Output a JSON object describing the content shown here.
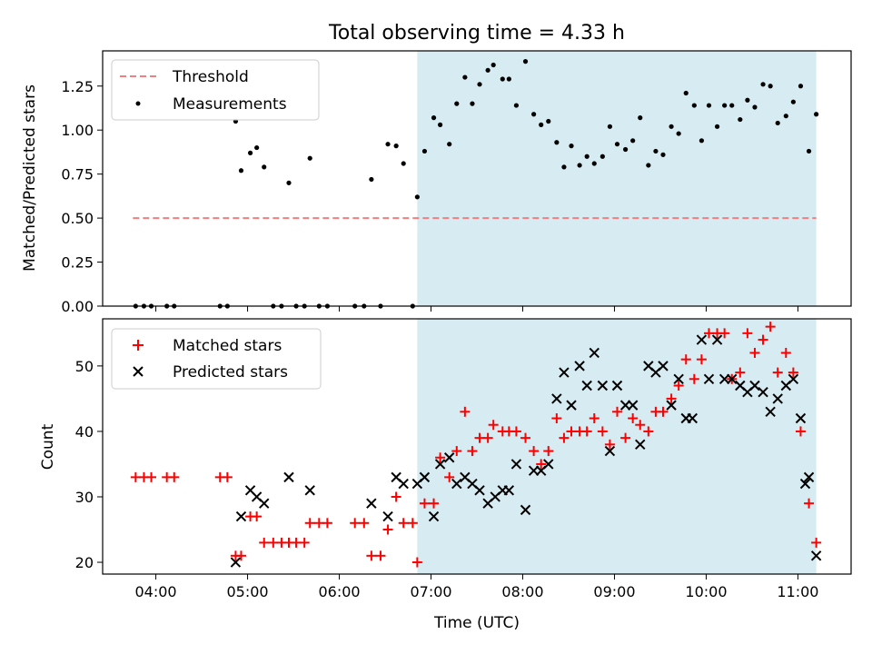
{
  "title": "Total observing time = 4.33 h",
  "colors": {
    "threshold": "#f08080",
    "measurement": "#000000",
    "matched": "#ff0000",
    "predicted": "#000000",
    "shade": "#add8e6"
  },
  "chart_data": [
    {
      "type": "scatter",
      "ylabel": "Matched/Predicted stars",
      "ylim": [
        0,
        1.45
      ],
      "xlim_hours": [
        3.42,
        11.58
      ],
      "shaded_region_hours": [
        6.85,
        11.2
      ],
      "yticks": [
        "0.00",
        "0.25",
        "0.50",
        "0.75",
        "1.00",
        "1.25"
      ],
      "legend": {
        "position": "top-left",
        "threshold_label": "Threshold",
        "measurement_label": "Measurements"
      },
      "threshold": {
        "y": 0.5,
        "x_hours": [
          3.75,
          11.2
        ]
      },
      "series": [
        {
          "name": "Measurements",
          "x_hours": [
            3.78,
            3.87,
            3.95,
            4.12,
            4.2,
            4.7,
            4.78,
            4.87,
            4.93,
            5.03,
            5.1,
            5.18,
            5.28,
            5.37,
            5.45,
            5.53,
            5.62,
            5.68,
            5.78,
            5.87,
            6.17,
            6.27,
            6.35,
            6.45,
            6.53,
            6.62,
            6.7,
            6.8,
            6.85,
            6.93,
            7.03,
            7.1,
            7.2,
            7.28,
            7.37,
            7.45,
            7.53,
            7.62,
            7.68,
            7.78,
            7.85,
            7.93,
            8.03,
            8.12,
            8.2,
            8.28,
            8.37,
            8.45,
            8.53,
            8.62,
            8.7,
            8.78,
            8.87,
            8.95,
            9.03,
            9.12,
            9.2,
            9.28,
            9.37,
            9.45,
            9.53,
            9.62,
            9.7,
            9.78,
            9.87,
            9.95,
            10.03,
            10.12,
            10.2,
            10.28,
            10.37,
            10.45,
            10.53,
            10.62,
            10.7,
            10.78,
            10.87,
            10.95,
            11.03,
            11.12,
            11.2
          ],
          "values": [
            0.0,
            0.0,
            0.0,
            0.0,
            0.0,
            0.0,
            0.0,
            1.05,
            0.77,
            0.87,
            0.9,
            0.79,
            0.0,
            0.0,
            0.7,
            0.0,
            0.0,
            0.84,
            0.0,
            0.0,
            0.0,
            0.0,
            0.72,
            0.0,
            0.92,
            0.91,
            0.81,
            0.0,
            0.62,
            0.88,
            1.07,
            1.03,
            0.92,
            1.15,
            1.3,
            1.15,
            1.26,
            1.34,
            1.37,
            1.29,
            1.29,
            1.14,
            1.39,
            1.09,
            1.03,
            1.05,
            0.93,
            0.79,
            0.91,
            0.8,
            0.85,
            0.81,
            0.85,
            1.02,
            0.92,
            0.89,
            0.94,
            1.07,
            0.8,
            0.88,
            0.86,
            1.02,
            0.98,
            1.21,
            1.14,
            0.94,
            1.14,
            1.02,
            1.14,
            1.14,
            1.06,
            1.17,
            1.13,
            1.26,
            1.25,
            1.04,
            1.08,
            1.16,
            1.25,
            0.88,
            1.09
          ]
        }
      ]
    },
    {
      "type": "scatter",
      "xlabel": "Time (UTC)",
      "ylabel": "Count",
      "ylim": [
        18.2,
        57.2
      ],
      "xlim_hours": [
        3.42,
        11.58
      ],
      "shaded_region_hours": [
        6.85,
        11.2
      ],
      "yticks": [
        "20",
        "30",
        "40",
        "50"
      ],
      "xticks": [
        "04:00",
        "05:00",
        "06:00",
        "07:00",
        "08:00",
        "09:00",
        "10:00",
        "11:00"
      ],
      "legend": {
        "position": "top-left"
      },
      "series": [
        {
          "name": "Matched stars",
          "x_hours": [
            3.78,
            3.87,
            3.95,
            4.12,
            4.2,
            4.7,
            4.78,
            4.87,
            4.93,
            5.03,
            5.1,
            5.18,
            5.28,
            5.37,
            5.45,
            5.53,
            5.62,
            5.68,
            5.78,
            5.87,
            6.17,
            6.27,
            6.35,
            6.45,
            6.53,
            6.62,
            6.7,
            6.8,
            6.85,
            6.93,
            7.03,
            7.1,
            7.2,
            7.28,
            7.37,
            7.45,
            7.53,
            7.62,
            7.68,
            7.78,
            7.85,
            7.93,
            8.03,
            8.12,
            8.2,
            8.28,
            8.37,
            8.45,
            8.53,
            8.62,
            8.7,
            8.78,
            8.87,
            8.95,
            9.03,
            9.12,
            9.2,
            9.28,
            9.37,
            9.45,
            9.53,
            9.62,
            9.7,
            9.78,
            9.87,
            9.95,
            10.03,
            10.12,
            10.2,
            10.28,
            10.37,
            10.45,
            10.53,
            10.62,
            10.7,
            10.78,
            10.87,
            10.95,
            11.03,
            11.12,
            11.2
          ],
          "values": [
            33,
            33,
            33,
            33,
            33,
            33,
            33,
            21,
            21,
            27,
            27,
            23,
            23,
            23,
            23,
            23,
            23,
            26,
            26,
            26,
            26,
            26,
            21,
            21,
            25,
            30,
            26,
            26,
            20,
            29,
            29,
            36,
            33,
            37,
            43,
            37,
            39,
            39,
            41,
            40,
            40,
            40,
            39,
            37,
            35,
            37,
            42,
            39,
            40,
            40,
            40,
            42,
            40,
            38,
            43,
            39,
            42,
            41,
            40,
            43,
            43,
            45,
            47,
            51,
            48,
            51,
            55,
            55,
            55,
            48,
            49,
            55,
            52,
            54,
            56,
            49,
            52,
            49,
            40,
            29,
            23
          ]
        },
        {
          "name": "Predicted stars",
          "x_hours": [
            4.87,
            4.93,
            5.03,
            5.1,
            5.18,
            5.45,
            5.68,
            6.35,
            6.53,
            6.62,
            6.7,
            6.85,
            6.93,
            7.03,
            7.1,
            7.2,
            7.28,
            7.37,
            7.45,
            7.53,
            7.62,
            7.7,
            7.78,
            7.85,
            7.93,
            8.03,
            8.12,
            8.2,
            8.28,
            8.37,
            8.45,
            8.53,
            8.62,
            8.7,
            8.78,
            8.87,
            8.95,
            9.03,
            9.12,
            9.2,
            9.28,
            9.37,
            9.45,
            9.53,
            9.62,
            9.7,
            9.78,
            9.85,
            9.95,
            10.03,
            10.12,
            10.2,
            10.28,
            10.37,
            10.45,
            10.53,
            10.62,
            10.7,
            10.78,
            10.87,
            10.95,
            11.03,
            11.08,
            11.12,
            11.2
          ],
          "values": [
            20,
            27,
            31,
            30,
            29,
            33,
            31,
            29,
            27,
            33,
            32,
            32,
            33,
            27,
            35,
            36,
            32,
            33,
            32,
            31,
            29,
            30,
            31,
            31,
            35,
            28,
            34,
            34,
            35,
            45,
            49,
            44,
            50,
            47,
            52,
            47,
            37,
            47,
            44,
            44,
            38,
            50,
            49,
            50,
            44,
            48,
            42,
            42,
            54,
            48,
            54,
            48,
            48,
            47,
            46,
            47,
            46,
            43,
            45,
            47,
            48,
            42,
            32,
            33,
            21
          ]
        }
      ]
    }
  ]
}
